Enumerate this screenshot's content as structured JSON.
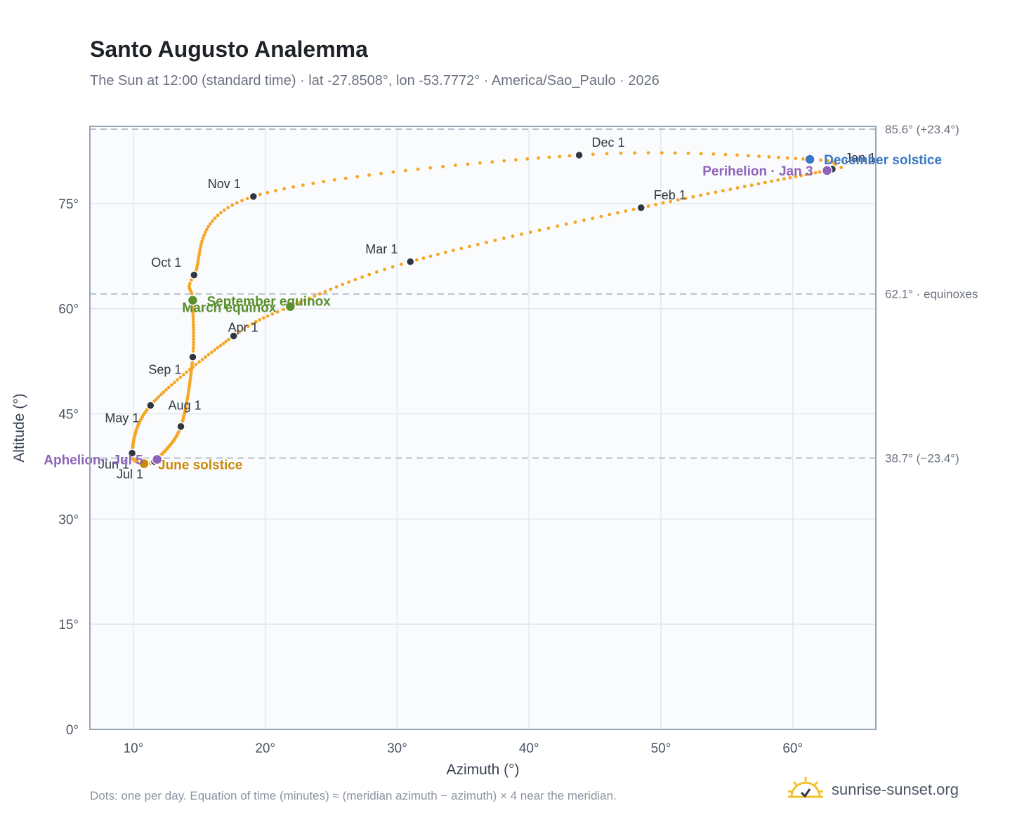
{
  "header": {
    "title": "Santo Augusto Analemma",
    "subtitle": "The Sun at 12:00 (standard time) · lat -27.8508°, lon -53.7772° · America/Sao_Paulo · 2026"
  },
  "footer": {
    "note": "Dots: one per day. Equation of time (minutes) ≈ (meridian azimuth − azimuth) × 4 near the meridian.",
    "brand": "sunrise-sunset.org"
  },
  "colors": {
    "path": "#f5a623",
    "month_dot": "#2f3640",
    "equinox": "#5a8f2e",
    "june_solstice": "#c98a0a",
    "december_solstice": "#3b78c4",
    "apsis": "#8e63b8",
    "grid": "#e3e7ec",
    "plot_bg": "#f9fbfd",
    "frame": "#9aa5b4",
    "ref_line": "#b8c0cb"
  },
  "chart_data": {
    "type": "scatter",
    "title": "Santo Augusto Analemma",
    "xlabel": "Azimuth (°)",
    "ylabel": "Altitude (°)",
    "xlim": [
      6.7,
      66.3
    ],
    "ylim": [
      0,
      86
    ],
    "x_ticks": [
      10,
      20,
      30,
      40,
      50,
      60
    ],
    "x_tick_labels": [
      "10°",
      "20°",
      "30°",
      "40°",
      "50°",
      "60°"
    ],
    "y_ticks": [
      0,
      15,
      30,
      45,
      60,
      75
    ],
    "y_tick_labels": [
      "0°",
      "15°",
      "30°",
      "45°",
      "60°",
      "75°"
    ],
    "grid": true,
    "reference_lines": [
      {
        "y": 85.6,
        "label": "85.6° (+23.4°)"
      },
      {
        "y": 62.1,
        "label": "62.1° · equinoxes"
      },
      {
        "y": 38.7,
        "label": "38.7° (−23.4°)"
      }
    ],
    "daily_path_keypoints": [
      {
        "date": "Jan 1",
        "az": 63.0,
        "alt": 79.9
      },
      {
        "date": "Jan 3",
        "az": 62.6,
        "alt": 79.7
      },
      {
        "date": "Feb 1",
        "az": 48.5,
        "alt": 74.4
      },
      {
        "date": "Mar 1",
        "az": 31.0,
        "alt": 66.7
      },
      {
        "date": "Mar 20",
        "az": 21.9,
        "alt": 60.3
      },
      {
        "date": "Apr 1",
        "az": 17.6,
        "alt": 56.1
      },
      {
        "date": "May 1",
        "az": 11.3,
        "alt": 46.2
      },
      {
        "date": "Jun 1",
        "az": 9.9,
        "alt": 39.4
      },
      {
        "date": "Jun 21",
        "az": 10.8,
        "alt": 37.9
      },
      {
        "date": "Jul 1",
        "az": 11.6,
        "alt": 38.2
      },
      {
        "date": "Jul 5",
        "az": 11.8,
        "alt": 38.5
      },
      {
        "date": "Aug 1",
        "az": 13.6,
        "alt": 43.2
      },
      {
        "date": "Sep 1",
        "az": 14.5,
        "alt": 53.1
      },
      {
        "date": "Sep 22",
        "az": 14.5,
        "alt": 61.2
      },
      {
        "date": "Oct 1",
        "az": 14.6,
        "alt": 64.8
      },
      {
        "date": "Nov 1",
        "az": 19.1,
        "alt": 76.0
      },
      {
        "date": "Dec 1",
        "az": 43.8,
        "alt": 81.9
      },
      {
        "date": "Dec 21",
        "az": 61.3,
        "alt": 81.3
      },
      {
        "date": "Dec 31",
        "az": 63.0,
        "alt": 80.0
      }
    ],
    "month_markers": [
      {
        "label": "Jan 1",
        "az": 63.0,
        "alt": 79.9
      },
      {
        "label": "Feb 1",
        "az": 48.5,
        "alt": 74.4
      },
      {
        "label": "Mar 1",
        "az": 31.0,
        "alt": 66.7
      },
      {
        "label": "Apr 1",
        "az": 17.6,
        "alt": 56.1
      },
      {
        "label": "May 1",
        "az": 11.3,
        "alt": 46.2
      },
      {
        "label": "Jun 1",
        "az": 9.9,
        "alt": 39.4
      },
      {
        "label": "Jul 1",
        "az": 11.6,
        "alt": 38.2
      },
      {
        "label": "Aug 1",
        "az": 13.6,
        "alt": 43.2
      },
      {
        "label": "Sep 1",
        "az": 14.5,
        "alt": 53.1
      },
      {
        "label": "Oct 1",
        "az": 14.6,
        "alt": 64.8
      },
      {
        "label": "Nov 1",
        "az": 19.1,
        "alt": 76.0
      },
      {
        "label": "Dec 1",
        "az": 43.8,
        "alt": 81.9
      }
    ],
    "events": [
      {
        "label": "March equinox",
        "az": 21.9,
        "alt": 60.3,
        "color_key": "equinox"
      },
      {
        "label": "September equinox",
        "az": 14.5,
        "alt": 61.2,
        "color_key": "equinox"
      },
      {
        "label": "June solstice",
        "az": 10.8,
        "alt": 37.9,
        "color_key": "june_solstice"
      },
      {
        "label": "December solstice",
        "az": 61.3,
        "alt": 81.3,
        "color_key": "december_solstice"
      },
      {
        "label": "Perihelion · Jan 3",
        "az": 62.6,
        "alt": 79.7,
        "color_key": "apsis"
      },
      {
        "label": "Aphelion · Jul 5",
        "az": 11.8,
        "alt": 38.5,
        "color_key": "apsis"
      }
    ]
  }
}
